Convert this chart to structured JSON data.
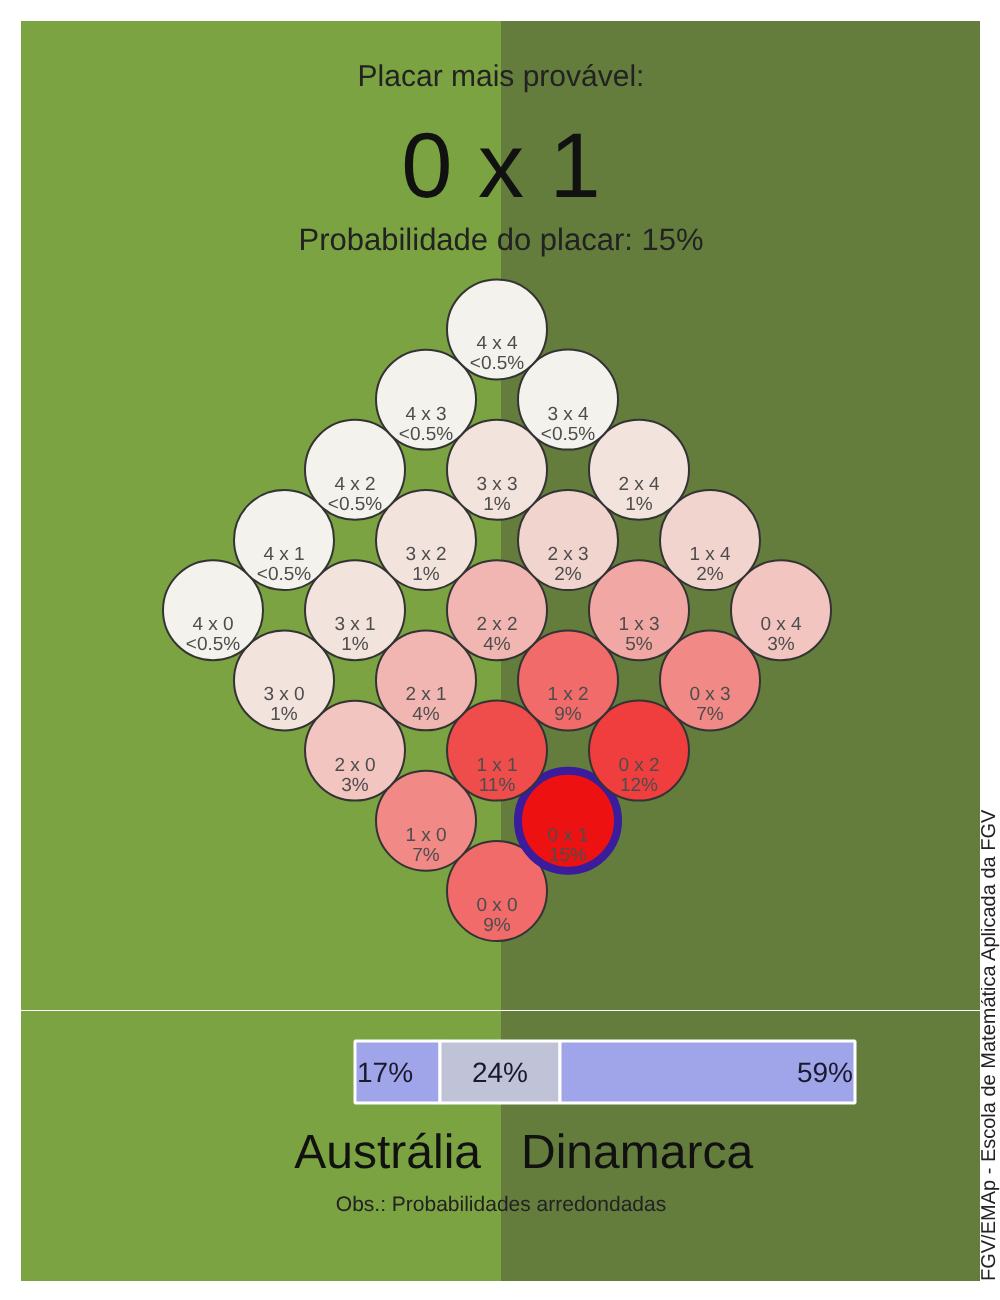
{
  "chart_data": [
    {
      "type": "other",
      "title": "Placar mais provável:",
      "subtitle": "0 x 1",
      "annotations": [
        "Probabilidade do placar: 15%",
        "FGV/EMAp - Escola de Matemática Aplicada da FGV"
      ],
      "categories": [
        "0 x 0",
        "0 x 1",
        "0 x 2",
        "0 x 3",
        "0 x 4",
        "1 x 0",
        "1 x 1",
        "1 x 2",
        "1 x 3",
        "1 x 4",
        "2 x 0",
        "2 x 1",
        "2 x 2",
        "2 x 3",
        "2 x 4",
        "3 x 0",
        "3 x 1",
        "3 x 2",
        "3 x 3",
        "3 x 4",
        "4 x 0",
        "4 x 1",
        "4 x 2",
        "4 x 3",
        "4 x 4"
      ],
      "values": [
        9,
        15,
        12,
        7,
        3,
        7,
        11,
        9,
        5,
        2,
        3,
        4,
        4,
        2,
        1,
        1,
        1,
        1,
        1,
        null,
        null,
        null,
        null,
        null,
        null
      ],
      "value_labels": [
        "9%",
        "15%",
        "12%",
        "7%",
        "3%",
        "7%",
        "11%",
        "9%",
        "5%",
        "2%",
        "3%",
        "4%",
        "4%",
        "2%",
        "1%",
        "1%",
        "1%",
        "1%",
        "1%",
        "<0.5%",
        "<0.5%",
        "<0.5%",
        "<0.5%",
        "<0.5%",
        "<0.5%"
      ]
    },
    {
      "type": "bar",
      "orientation": "horizontal",
      "stacked": true,
      "categories": [
        null
      ],
      "xlim": [
        0,
        100
      ],
      "tick_labels": false,
      "series": [
        {
          "name": "Austrália",
          "color": "#a0a4e8",
          "values": [
            17
          ],
          "value_labels": [
            "17%"
          ]
        },
        {
          "color": "#c0c3d8",
          "values": [
            24
          ],
          "value_labels": [
            "24%"
          ]
        },
        {
          "name": "Dinamarca",
          "color": "#a0a4e8",
          "values": [
            59
          ],
          "value_labels": [
            "59%"
          ]
        }
      ],
      "annotations": [
        "Obs.: Probabilidades arredondadas"
      ]
    }
  ]
}
